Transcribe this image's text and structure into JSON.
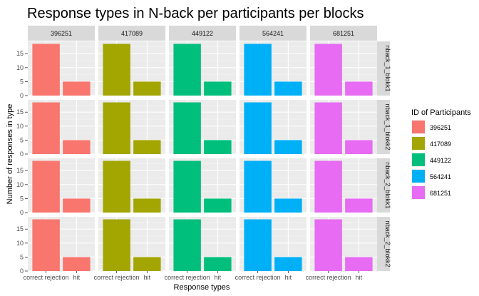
{
  "chart_data": {
    "type": "bar",
    "title": "Response types in N-back per participants per blocks",
    "xlabel": "Response types",
    "ylabel": "Number of responses in type",
    "categories": [
      "correct rejection",
      "hit"
    ],
    "columns": [
      "396251",
      "417089",
      "449122",
      "564241",
      "681251"
    ],
    "rows": [
      "nback_1_blokk1",
      "nback_1_blokk2",
      "nback_2_blokk1",
      "nback_2_blokk2"
    ],
    "yticks": [
      0,
      5,
      10,
      15
    ],
    "ylim": [
      0,
      19.4
    ],
    "legend": {
      "title": "ID of Participants",
      "position": "right",
      "items": [
        {
          "label": "396251",
          "color": "#F8766D"
        },
        {
          "label": "417089",
          "color": "#A3A500"
        },
        {
          "label": "449122",
          "color": "#00BF7D"
        },
        {
          "label": "564241",
          "color": "#00B0F6"
        },
        {
          "label": "681251",
          "color": "#E76BF3"
        }
      ]
    },
    "values": [
      [
        [
          18.5,
          5
        ],
        [
          18.5,
          5
        ],
        [
          18.5,
          5
        ],
        [
          18.5,
          5
        ],
        [
          18.5,
          5
        ]
      ],
      [
        [
          18.5,
          5
        ],
        [
          18.5,
          5
        ],
        [
          18.5,
          5
        ],
        [
          18.5,
          5
        ],
        [
          18.5,
          5
        ]
      ],
      [
        [
          18.5,
          5
        ],
        [
          18.5,
          5
        ],
        [
          18.5,
          5
        ],
        [
          18.5,
          5
        ],
        [
          18.5,
          5
        ]
      ],
      [
        [
          18.5,
          5
        ],
        [
          18.5,
          5
        ],
        [
          18.5,
          5
        ],
        [
          18.5,
          5
        ],
        [
          18.5,
          5
        ]
      ]
    ],
    "grid": true
  }
}
